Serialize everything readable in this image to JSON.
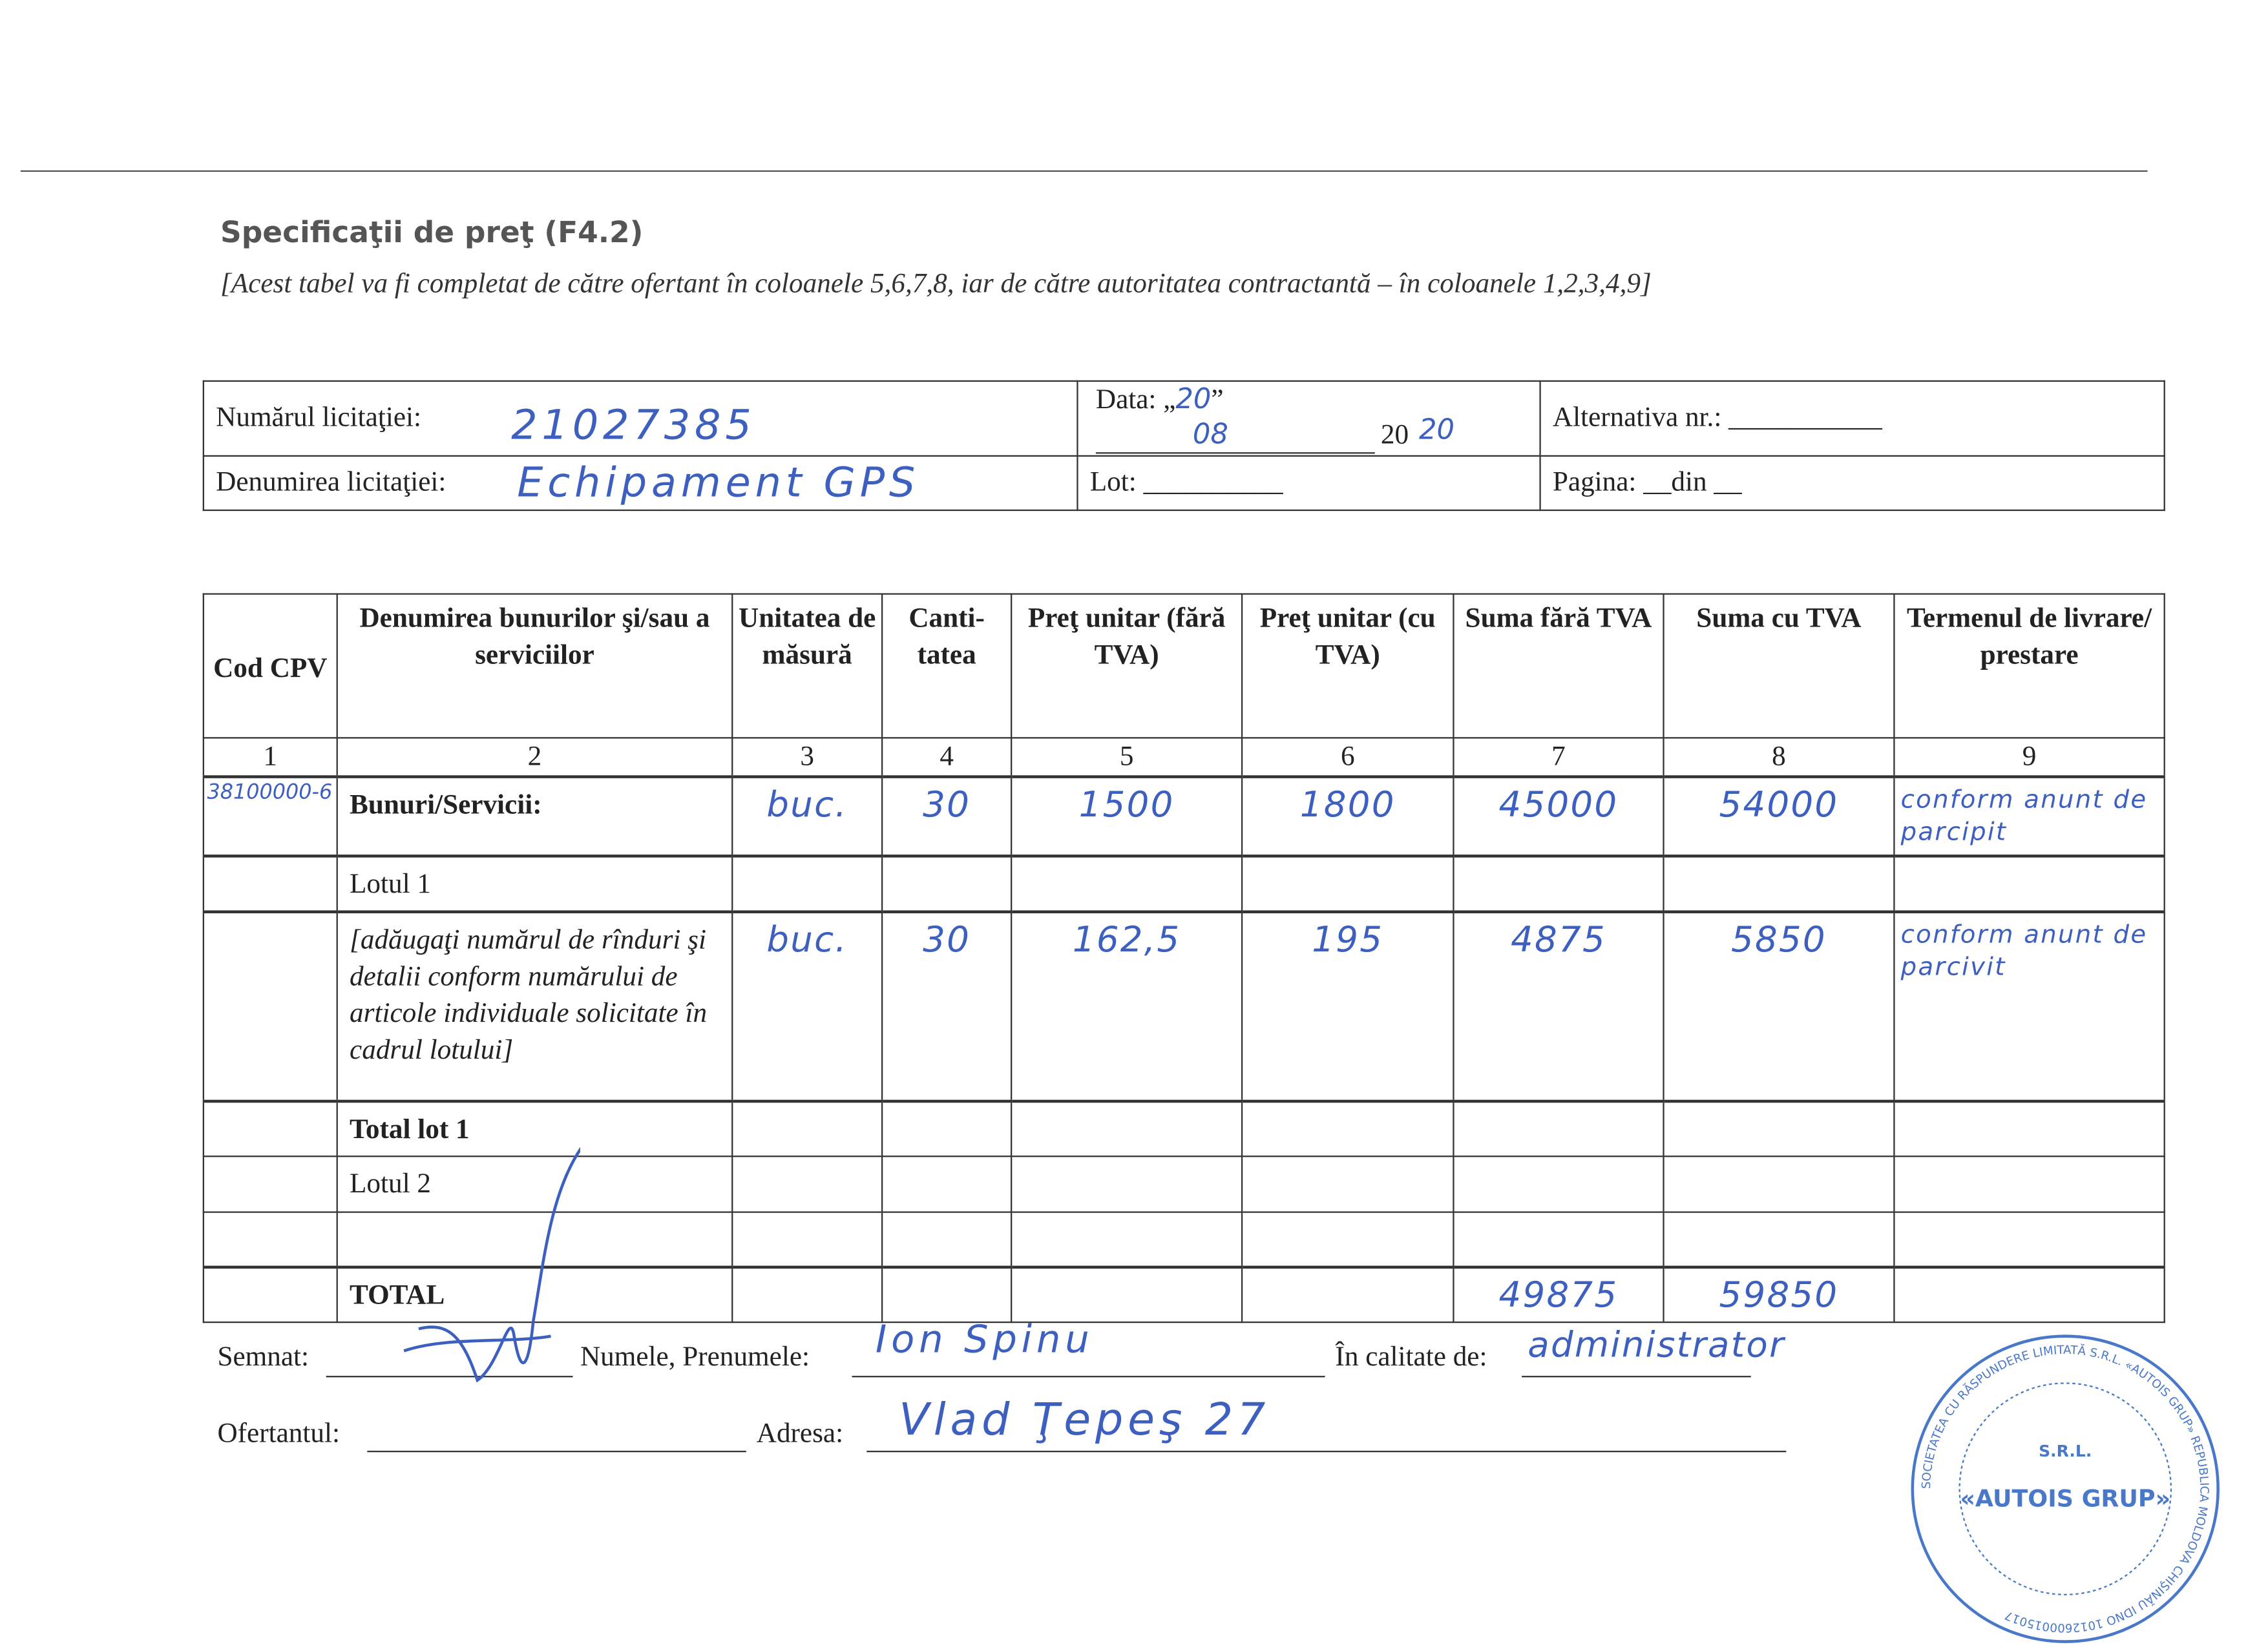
{
  "document": {
    "title": "Specificaţii de preţ (F4.2)",
    "subtitle": "[Acest tabel va fi completat de către ofertant în coloanele 5,6,7,8, iar de către autoritatea contractantă – în coloanele 1,2,3,4,9]"
  },
  "header": {
    "numar_label": "Numărul licitaţiei:",
    "numar_value": "21027385",
    "data_label": "Data: „",
    "data_quote": "”",
    "data_day": "20",
    "data_month": "08",
    "data_year_prefix": "20",
    "data_year": "20",
    "alternativa_label": "Alternativa nr.: ___________",
    "denumire_label": "Denumirea licitaţiei:",
    "denumire_value": "Echipament GPS",
    "lot_label": "Lot: __________",
    "pagina_label": "Pagina: __din __"
  },
  "table": {
    "columns": [
      "Cod CPV",
      "Denumirea bunurilor şi/sau a serviciilor",
      "Unitatea de măsură",
      "Canti-tatea",
      "Preţ unitar (fără TVA)",
      "Preţ unitar (cu TVA)",
      "Suma fără TVA",
      "Suma cu TVA",
      "Termenul de livrare/ prestare"
    ],
    "numbers": [
      "1",
      "2",
      "3",
      "4",
      "5",
      "6",
      "7",
      "8",
      "9"
    ],
    "rows": [
      {
        "cpv": "38100000-6",
        "name": "Bunuri/Servicii:",
        "unit": "buc.",
        "qty": "30",
        "price": "1500",
        "price_tva": "1800",
        "sum": "45000",
        "sum_tva": "54000",
        "term": "conform anunt de parcipit"
      },
      {
        "cpv": "",
        "name": "Lotul 1",
        "unit": "",
        "qty": "",
        "price": "",
        "price_tva": "",
        "sum": "",
        "sum_tva": "",
        "term": ""
      },
      {
        "cpv": "",
        "name": "[adăugaţi numărul de rînduri şi detalii conform numărului de articole individuale solicitate în cadrul lotului]",
        "unit": "buc.",
        "qty": "30",
        "price": "162,5",
        "price_tva": "195",
        "sum": "4875",
        "sum_tva": "5850",
        "term": "conform anunt de parcivit"
      },
      {
        "cpv": "",
        "name": "Total lot 1",
        "unit": "",
        "qty": "",
        "price": "",
        "price_tva": "",
        "sum": "",
        "sum_tva": "",
        "term": ""
      },
      {
        "cpv": "",
        "name": "Lotul 2",
        "unit": "",
        "qty": "",
        "price": "",
        "price_tva": "",
        "sum": "",
        "sum_tva": "",
        "term": ""
      },
      {
        "cpv": "",
        "name": "",
        "unit": "",
        "qty": "",
        "price": "",
        "price_tva": "",
        "sum": "",
        "sum_tva": "",
        "term": ""
      },
      {
        "cpv": "",
        "name": "TOTAL",
        "unit": "",
        "qty": "",
        "price": "",
        "price_tva": "",
        "sum": "49875",
        "sum_tva": "59850",
        "term": ""
      }
    ]
  },
  "footer": {
    "semnat_label": "Semnat:",
    "nume_label": "Numele, Prenumele:",
    "nume_value": "Ion Spinu",
    "calitate_label": "În calitate de:",
    "calitate_value": "administrator",
    "ofertant_label": "Ofertantul:",
    "adresa_label": "Adresa:",
    "adresa_value": "Vlad Ţepeş 27"
  },
  "stamp": {
    "text": "SOCIETATEA CU RĂSPUNDERE LIMITATĂ S.R.L. «AUTOIS GRUP» REPUBLICA MOLDOVA CHIŞINĂU IDNO 1012600015017"
  },
  "colors": {
    "ink": "#3d5fbf",
    "stamp": "#4a78c8"
  }
}
